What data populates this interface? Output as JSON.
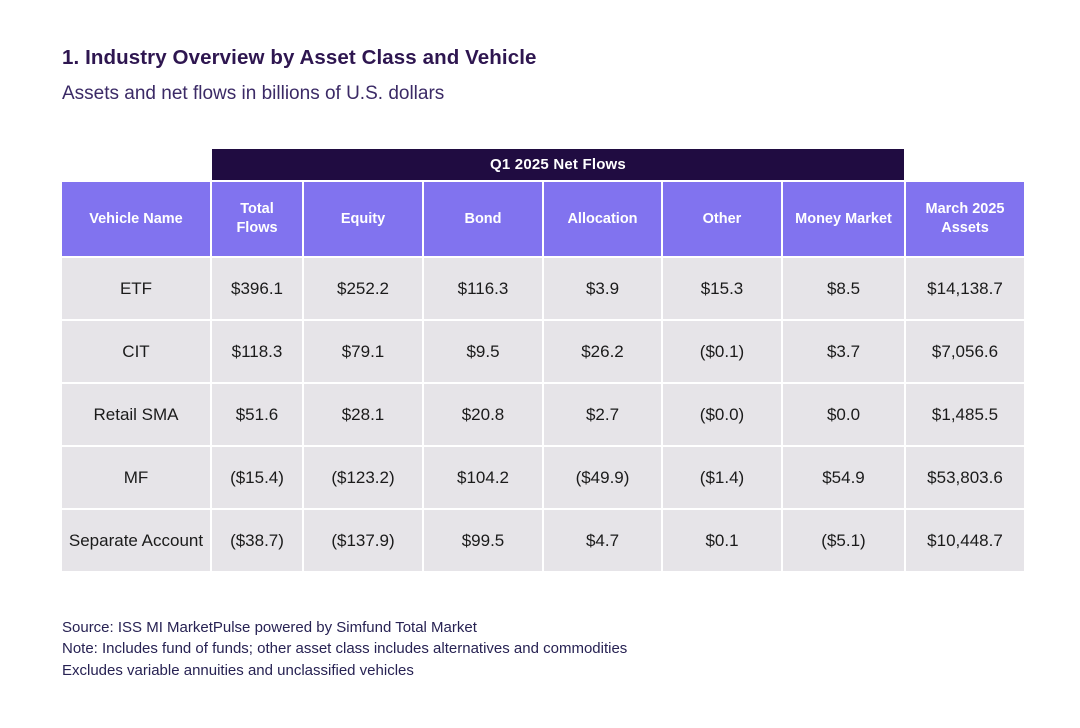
{
  "header": {
    "title": "1. Industry Overview by Asset Class and Vehicle",
    "subtitle": "Assets and net flows in billions of U.S. dollars"
  },
  "table": {
    "band_label": "Q1 2025 Net Flows",
    "columns": [
      "Vehicle Name",
      "Total Flows",
      "Equity",
      "Bond",
      "Allocation",
      "Other",
      "Money Market",
      "March 2025 Assets"
    ],
    "rows": [
      {
        "vehicle": "ETF",
        "values": [
          "$396.1",
          "$252.2",
          "$116.3",
          "$3.9",
          "$15.3",
          "$8.5",
          "$14,138.7"
        ]
      },
      {
        "vehicle": "CIT",
        "values": [
          "$118.3",
          "$79.1",
          "$9.5",
          "$26.2",
          "($0.1)",
          "$3.7",
          "$7,056.6"
        ]
      },
      {
        "vehicle": "Retail SMA",
        "values": [
          "$51.6",
          "$28.1",
          "$20.8",
          "$2.7",
          "($0.0)",
          "$0.0",
          "$1,485.5"
        ]
      },
      {
        "vehicle": "MF",
        "values": [
          "($15.4)",
          "($123.2)",
          "$104.2",
          "($49.9)",
          "($1.4)",
          "$54.9",
          "$53,803.6"
        ]
      },
      {
        "vehicle": "Separate Account",
        "values": [
          "($38.7)",
          "($137.9)",
          "$99.5",
          "$4.7",
          "$0.1",
          "($5.1)",
          "$10,448.7"
        ]
      }
    ]
  },
  "footer": {
    "lines": [
      "Source: ISS MI MarketPulse powered by Simfund Total Market",
      "Note: Includes fund of funds; other asset class includes alternatives and commodities",
      "Excludes variable annuities and unclassified vehicles"
    ]
  },
  "colors": {
    "band_bg": "#200c41",
    "header_bg": "#8173ef",
    "cell_bg": "#e6e4e8",
    "title_text": "#2e1650",
    "cell_text": "#1b1b1b"
  }
}
